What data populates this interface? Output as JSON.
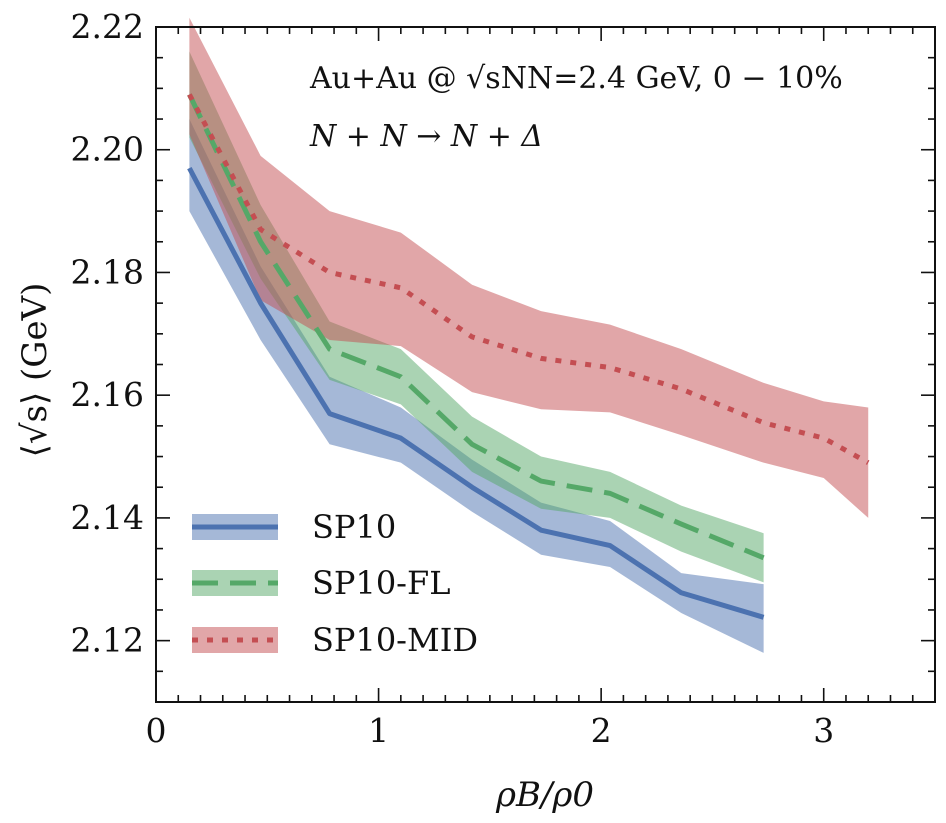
{
  "chart_data": {
    "type": "line",
    "xlabel": "ρB/ρ0",
    "ylabel": "⟨√s⟩ (GeV)",
    "xlim": [
      0,
      3.5
    ],
    "ylim": [
      2.11,
      2.22
    ],
    "xticks": [
      "0",
      "1",
      "2",
      "3"
    ],
    "yticks": [
      "2.12",
      "2.14",
      "2.16",
      "2.18",
      "2.20",
      "2.22"
    ],
    "annotations": [
      "Au+Au @ √sNN=2.4 GeV, 0 − 10%",
      "N + N → N + Δ"
    ],
    "legend_position": "lower-left",
    "series": [
      {
        "name": "SP10",
        "color": "#4c72b0",
        "style": "solid",
        "x": [
          0.15,
          0.47,
          0.78,
          1.1,
          1.42,
          1.73,
          2.04,
          2.36,
          2.73
        ],
        "y": [
          2.197,
          2.175,
          2.157,
          2.153,
          2.145,
          2.138,
          2.1355,
          2.1278,
          2.1238
        ],
        "band_low": [
          2.19,
          2.169,
          2.152,
          2.149,
          2.141,
          2.134,
          2.132,
          2.1245,
          2.118
        ],
        "band_high": [
          2.205,
          2.181,
          2.163,
          2.158,
          2.1495,
          2.1425,
          2.1395,
          2.131,
          2.1292
        ]
      },
      {
        "name": "SP10-FL",
        "color": "#55a868",
        "style": "dashed",
        "x": [
          0.15,
          0.47,
          0.78,
          1.1,
          1.42,
          1.73,
          2.04,
          2.36,
          2.73
        ],
        "y": [
          2.209,
          2.185,
          2.1675,
          2.163,
          2.152,
          2.146,
          2.144,
          2.139,
          2.1335
        ],
        "band_low": [
          2.202,
          2.179,
          2.1625,
          2.1585,
          2.1475,
          2.1415,
          2.14,
          2.1345,
          2.1295
        ],
        "band_high": [
          2.216,
          2.191,
          2.172,
          2.1675,
          2.1565,
          2.15,
          2.1475,
          2.142,
          2.1375
        ]
      },
      {
        "name": "SP10-MID",
        "color": "#c44e52",
        "style": "dotted",
        "x": [
          0.15,
          0.47,
          0.78,
          1.1,
          1.42,
          1.73,
          2.04,
          2.36,
          2.73,
          3.0,
          3.2
        ],
        "y": [
          2.209,
          2.187,
          2.18,
          2.1775,
          2.1695,
          2.166,
          2.1645,
          2.161,
          2.1555,
          2.153,
          2.149
        ],
        "band_low": [
          2.2025,
          2.1755,
          2.169,
          2.168,
          2.1605,
          2.1577,
          2.1572,
          2.1535,
          2.149,
          2.1465,
          2.14
        ],
        "band_high": [
          2.2215,
          2.199,
          2.19,
          2.1865,
          2.178,
          2.1737,
          2.1715,
          2.1675,
          2.162,
          2.159,
          2.158
        ]
      }
    ]
  }
}
